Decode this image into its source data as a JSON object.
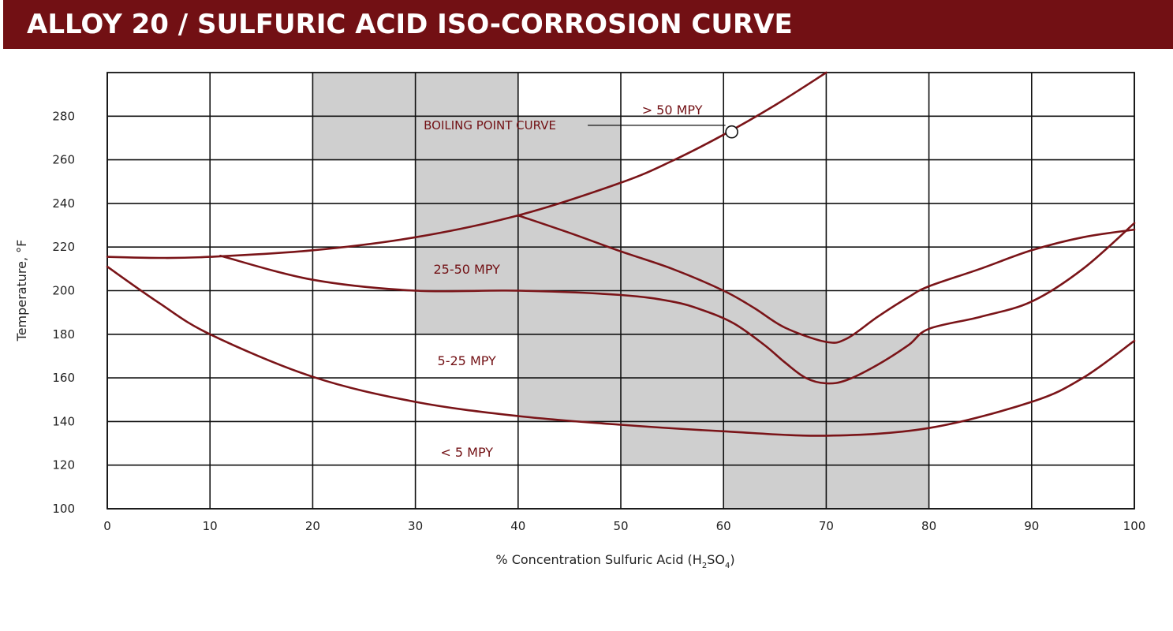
{
  "header": {
    "title": "ALLOY 20 / SULFURIC ACID ISO-CORROSION CURVE"
  },
  "colors": {
    "title_bar": "#721014",
    "curve": "#7a1418",
    "shading": "#cfcfcf",
    "grid": "#111111"
  },
  "chart_data": {
    "type": "line",
    "title": "ALLOY 20 / SULFURIC ACID ISO-CORROSION CURVE",
    "xlabel": "% Concentration Sulfuric Acid (H2SO4)",
    "xlabel_parts": {
      "prefix": "% Concentration Sulfuric Acid (H",
      "sub1": "2",
      "mid": "SO",
      "sub2": "4",
      "suffix": ")"
    },
    "ylabel": "Temperature, °F",
    "xlim": [
      0,
      100
    ],
    "ylim": [
      100,
      300
    ],
    "x_ticks": [
      0,
      10,
      20,
      30,
      40,
      50,
      60,
      70,
      80,
      90,
      100
    ],
    "y_ticks": [
      100,
      120,
      140,
      160,
      180,
      200,
      220,
      240,
      260,
      280
    ],
    "grid": true,
    "shaded_cells": [
      {
        "x": [
          20,
          40
        ],
        "y": [
          260,
          300
        ]
      },
      {
        "x": [
          30,
          40
        ],
        "y": [
          180,
          260
        ]
      },
      {
        "x": [
          40,
          50
        ],
        "y": [
          140,
          280
        ]
      },
      {
        "x": [
          50,
          60
        ],
        "y": [
          120,
          220
        ]
      },
      {
        "x": [
          60,
          70
        ],
        "y": [
          100,
          200
        ]
      },
      {
        "x": [
          70,
          80
        ],
        "y": [
          100,
          180
        ]
      }
    ],
    "series": [
      {
        "name": "Boiling Point Curve",
        "x": [
          0,
          5,
          10,
          20,
          30,
          40,
          50,
          55,
          60,
          65,
          70
        ],
        "y": [
          215.5,
          215,
          215.5,
          218.5,
          224.5,
          234.5,
          249.5,
          259.5,
          271.5,
          285,
          300
        ]
      },
      {
        "name": "50 MPY",
        "x": [
          40,
          45,
          50,
          55,
          60,
          63,
          66,
          70,
          72,
          75,
          78,
          80,
          85,
          90,
          95,
          100
        ],
        "y": [
          234.5,
          226.5,
          218,
          210,
          200,
          192,
          183,
          176.5,
          178,
          188,
          197,
          202,
          210,
          218.5,
          224.5,
          228
        ]
      },
      {
        "name": "25 MPY",
        "x": [
          11,
          20,
          30,
          40,
          50,
          55,
          58,
          61,
          64,
          66,
          68,
          70,
          72,
          75,
          78,
          80,
          85,
          90,
          95,
          100
        ],
        "y": [
          216,
          205,
          200,
          200,
          198,
          195,
          191,
          185,
          175,
          167,
          160,
          157.5,
          159,
          166,
          175,
          182.5,
          188,
          195,
          210,
          231
        ]
      },
      {
        "name": "5 MPY",
        "x": [
          0,
          5,
          10,
          20,
          30,
          40,
          50,
          60,
          70,
          80,
          90,
          95,
          100
        ],
        "y": [
          211,
          194.5,
          180,
          160.5,
          149,
          142.5,
          138.5,
          135.5,
          133.5,
          137,
          149,
          160,
          177
        ]
      }
    ],
    "region_labels": [
      {
        "text": "> 50 MPY",
        "x": 55,
        "y": 283
      },
      {
        "text": "25-50 MPY",
        "x": 35,
        "y": 210
      },
      {
        "text": "5-25 MPY",
        "x": 35,
        "y": 168
      },
      {
        "text": "< 5 MPY",
        "x": 35,
        "y": 126
      }
    ],
    "annotations": [
      {
        "text": "BOILING POINT CURVE",
        "x": 30.5,
        "y": 274,
        "marker_x": 60.8,
        "marker_y": 272.8
      }
    ]
  }
}
